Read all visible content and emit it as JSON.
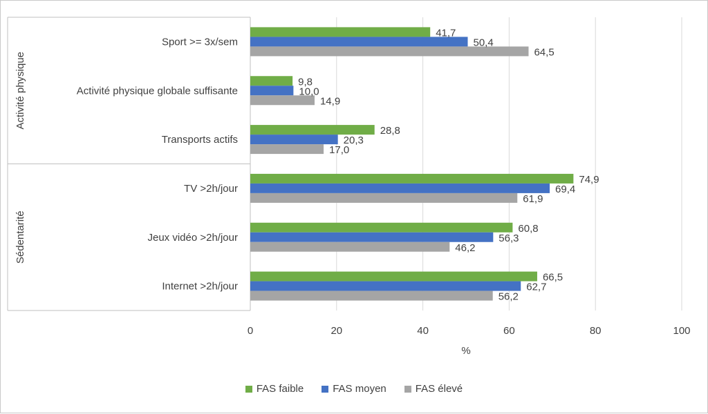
{
  "chart_data": {
    "type": "bar",
    "orientation": "horizontal",
    "xlabel": "%",
    "xlim": [
      0,
      100
    ],
    "xticks": [
      0,
      20,
      40,
      60,
      80,
      100
    ],
    "grid": true,
    "legend_position": "bottom",
    "groups": [
      {
        "label": "Activité physique",
        "categories": [
          "Sport >= 3x/sem",
          "Activité physique globale suffisante",
          "Transports actifs"
        ]
      },
      {
        "label": "Sédentarité",
        "categories": [
          "TV >2h/jour",
          "Jeux vidéo >2h/jour",
          "Internet >2h/jour"
        ]
      }
    ],
    "categories": [
      "Sport >= 3x/sem",
      "Activité physique globale suffisante",
      "Transports actifs",
      "TV >2h/jour",
      "Jeux vidéo >2h/jour",
      "Internet >2h/jour"
    ],
    "series": [
      {
        "name": "FAS faible",
        "color": "#70ad47",
        "values": [
          41.7,
          9.8,
          28.8,
          74.9,
          60.8,
          66.5
        ],
        "labels": [
          "41,7",
          "9,8",
          "28,8",
          "74,9",
          "60,8",
          "66,5"
        ]
      },
      {
        "name": "FAS moyen",
        "color": "#4472c4",
        "values": [
          50.4,
          10.0,
          20.3,
          69.4,
          56.3,
          62.7
        ],
        "labels": [
          "50,4",
          "10,0",
          "20,3",
          "69,4",
          "56,3",
          "62,7"
        ]
      },
      {
        "name": "FAS élevé",
        "color": "#a5a5a5",
        "values": [
          64.5,
          14.9,
          17.0,
          61.9,
          46.2,
          56.2
        ],
        "labels": [
          "64,5",
          "14,9",
          "17,0",
          "61,9",
          "46,2",
          "56,2"
        ]
      }
    ]
  }
}
